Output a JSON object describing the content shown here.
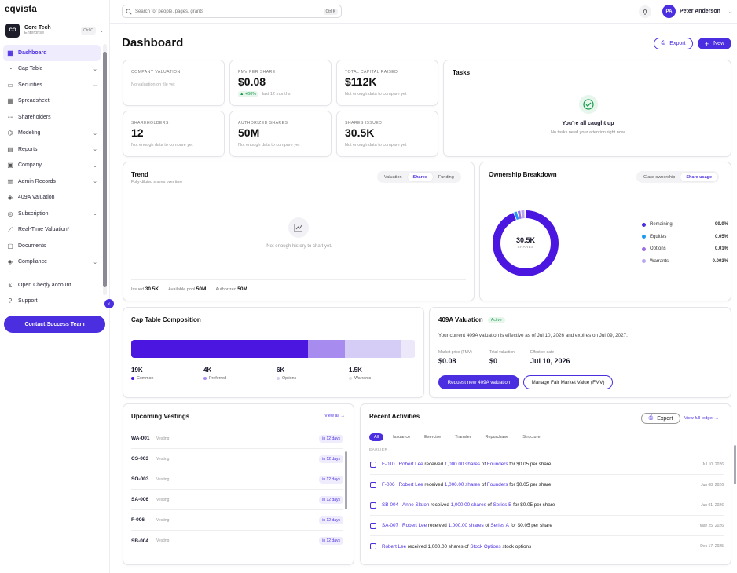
{
  "app": {
    "logo": "eqvista"
  },
  "org": {
    "initials": "CO",
    "name": "Core Tech",
    "plan": "Enterprise",
    "shortcut": "Ctrl O"
  },
  "nav": [
    {
      "label": "Dashboard",
      "active": true,
      "chevron": false
    },
    {
      "label": "Cap Table",
      "chevron": true
    },
    {
      "label": "Securities",
      "chevron": true
    },
    {
      "label": "Spreadsheet",
      "chevron": false
    },
    {
      "label": "Shareholders",
      "chevron": false
    },
    {
      "label": "Modeling",
      "chevron": true
    },
    {
      "label": "Reports",
      "chevron": true
    },
    {
      "label": "Company",
      "chevron": true
    },
    {
      "label": "Admin Records",
      "chevron": true
    },
    {
      "label": "409A Valuation",
      "chevron": false
    },
    {
      "label": "Subscription",
      "chevron": true
    },
    {
      "label": "Real-Time Valuation*",
      "chevron": false
    },
    {
      "label": "Documents",
      "chevron": false
    },
    {
      "label": "Compliance",
      "chevron": true
    }
  ],
  "nav_bottom": [
    {
      "label": "Open Cheqly account"
    },
    {
      "label": "Support"
    }
  ],
  "contact_btn": "Contact Success Team",
  "search": {
    "placeholder": "Search for people, pages, grants",
    "shortcut": "Ctrl K"
  },
  "user": {
    "initials": "PA",
    "name": "Peter Anderson"
  },
  "page_title": "Dashboard",
  "actions": {
    "export": "Export",
    "new": "New"
  },
  "kpis": {
    "company_valuation": {
      "label": "Company Valuation",
      "value": "",
      "sub": "No valuation on file yet"
    },
    "fmv": {
      "label": "FMV per share",
      "value": "$0.08",
      "delta": "▲ +60%",
      "sub": "last 12 months"
    },
    "capital": {
      "label": "Total capital raised",
      "value": "$112K",
      "sub": "Not enough data to compare yet"
    },
    "shareholders": {
      "label": "Shareholders",
      "value": "12",
      "sub": "Not enough data to compare yet"
    },
    "authorized": {
      "label": "Authorized shares",
      "value": "50M",
      "sub": "Not enough data to compare yet"
    },
    "issued": {
      "label": "Shares issued",
      "value": "30.5K",
      "sub": "Not enough data to compare yet"
    }
  },
  "tasks": {
    "title": "Tasks",
    "heading": "You're all caught up",
    "sub": "No tasks need your attention right now."
  },
  "trend": {
    "title": "Trend",
    "sub": "Fully-diluted shares over time",
    "tabs": [
      "Valuation",
      "Shares",
      "Funding"
    ],
    "empty": "Not enough history to chart yet.",
    "footer": [
      {
        "k": "Issued",
        "v": "30.5K"
      },
      {
        "k": "Available pool",
        "v": "50M"
      },
      {
        "k": "Authorized",
        "v": "50M"
      }
    ]
  },
  "ownership": {
    "title": "Ownership Breakdown",
    "tabs": [
      "Class ownership",
      "Share usage"
    ],
    "center_value": "30.5K",
    "center_label": "SHARES",
    "legend": [
      {
        "name": "Remaining",
        "value": "99.9%",
        "color": "#4b2ee0"
      },
      {
        "name": "Equities",
        "value": "0.05%",
        "color": "#1e9bf0"
      },
      {
        "name": "Options",
        "value": "0.01%",
        "color": "#9b6ee8"
      },
      {
        "name": "Warrants",
        "value": "0.003%",
        "color": "#b9a6f0"
      }
    ]
  },
  "captable": {
    "title": "Cap Table Composition",
    "items": [
      {
        "value": "19K",
        "name": "Common",
        "color": "#4b16e0",
        "share": 0.6218
      },
      {
        "value": "4K",
        "name": "Preferred",
        "color": "#a88bee",
        "share": 0.1309
      },
      {
        "value": "6K",
        "name": "Options",
        "color": "#d6cdf6",
        "share": 0.1963
      },
      {
        "value": "1.5K",
        "name": "Warrants",
        "color": "#ece8fa",
        "share": 0.0491
      }
    ]
  },
  "valuation": {
    "title": "409A Valuation",
    "badge": "Active",
    "desc": "Your current 409A valuation is effective as of Jul 10, 2026 and expires on Jul 09, 2027.",
    "stats": [
      {
        "k": "Market price (FMV)",
        "v": "$0.08"
      },
      {
        "k": "Total valuation",
        "v": "$0"
      },
      {
        "k": "Effective date",
        "v": "Jul 10, 2026"
      }
    ],
    "btn_request": "Request new 409A valuation",
    "btn_manage": "Manage Fair Market Value (FMV)"
  },
  "vestings": {
    "title": "Upcoming Vestings",
    "view_all": "View all →",
    "rows": [
      {
        "id": "WA-001",
        "status": "Vesting",
        "due": "in 12 days"
      },
      {
        "id": "CS-003",
        "status": "Vesting",
        "due": "in 12 days"
      },
      {
        "id": "SO-003",
        "status": "Vesting",
        "due": "in 12 days"
      },
      {
        "id": "SA-006",
        "status": "Vesting",
        "due": "in 12 days"
      },
      {
        "id": "F-006",
        "status": "Vesting",
        "due": "in 12 days"
      },
      {
        "id": "SB-004",
        "status": "Vesting",
        "due": "in 12 days"
      }
    ]
  },
  "activities": {
    "title": "Recent Activities",
    "export": "Export",
    "view_ledger": "View full ledger →",
    "filters": [
      "All",
      "Issuance",
      "Exercise",
      "Transfer",
      "Repurchase",
      "Structure"
    ],
    "group": "EARLIER",
    "rows": [
      {
        "cert": "F-010",
        "person": "Robert Lee",
        "verb": " received ",
        "shares": "1,000.00 shares",
        "of": " of ",
        "cls": "Founders",
        "tail": " for $0.05 per share",
        "date": "Jul 10, 2026"
      },
      {
        "cert": "F-006",
        "person": "Robert Lee",
        "verb": " received ",
        "shares": "1,000.00 shares",
        "of": " of ",
        "cls": "Founders",
        "tail": " for $0.05 per share",
        "date": "Jun 08, 2026"
      },
      {
        "cert": "SB-004",
        "person": "Anne Slaton",
        "verb": " received ",
        "shares": "1,000.00 shares",
        "of": " of ",
        "cls": "Series B",
        "tail": " for $0.05 per share",
        "date": "Jun 01, 2026"
      },
      {
        "cert": "SA-007",
        "person": "Robert Lee",
        "verb": " received ",
        "shares": "1,000.00 shares",
        "of": " of ",
        "cls": "Series A",
        "tail": " for $0.05 per share",
        "date": "May 25, 2026"
      },
      {
        "cert": "",
        "person": "Robert Lee",
        "verb": " received ",
        "shares": "1,000.00 shares",
        "of": " of ",
        "cls": "Stock Options",
        "tail": " stock options",
        "date": "Dec 17, 2025"
      }
    ]
  }
}
